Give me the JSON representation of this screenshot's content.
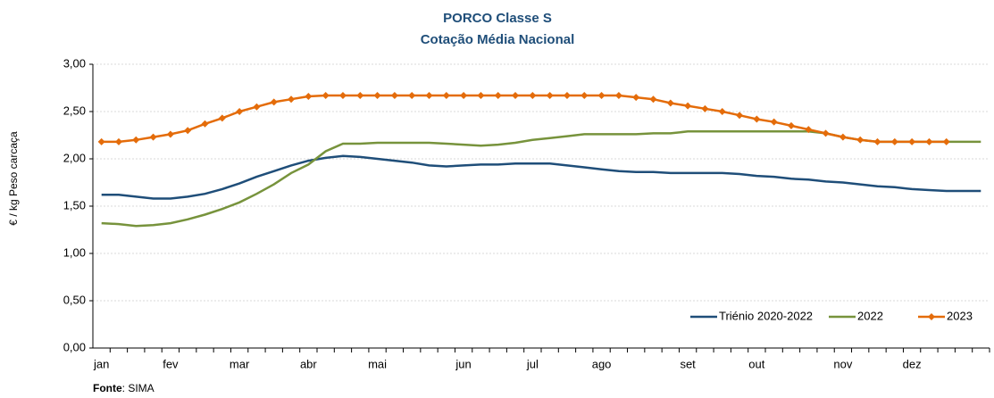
{
  "chart_data": {
    "type": "line",
    "title": "PORCO Classe S",
    "subtitle": "Cotação Média Nacional",
    "y_label": "€ / kg Peso carcaça",
    "source": {
      "label": "Fonte",
      "text": ": SIMA"
    },
    "legend": "bottom-right",
    "grid": true,
    "ylim": [
      0,
      3
    ],
    "yticks": [
      {
        "value": 0,
        "label": "0,00"
      },
      {
        "value": 0.5,
        "label": "0,50"
      },
      {
        "value": 1,
        "label": "1,00"
      },
      {
        "value": 1.5,
        "label": "1,50"
      },
      {
        "value": 2,
        "label": "2,00"
      },
      {
        "value": 2.5,
        "label": "2,50"
      },
      {
        "value": 3,
        "label": "3,00"
      }
    ],
    "categories": [
      "jan",
      null,
      null,
      null,
      "fev",
      null,
      null,
      null,
      "mar",
      null,
      null,
      null,
      "abr",
      null,
      null,
      null,
      "mai",
      null,
      null,
      null,
      null,
      "jun",
      null,
      null,
      null,
      "jul",
      null,
      null,
      null,
      "ago",
      null,
      null,
      null,
      null,
      "set",
      null,
      null,
      null,
      "out",
      null,
      null,
      null,
      null,
      "nov",
      null,
      null,
      null,
      "dez",
      null,
      null,
      null,
      null
    ],
    "series": [
      {
        "name": "Triénio 2020-2022",
        "color": "#1f4e79",
        "marker": false,
        "values": [
          1.62,
          1.62,
          1.6,
          1.58,
          1.58,
          1.6,
          1.63,
          1.68,
          1.74,
          1.81,
          1.87,
          1.93,
          1.98,
          2.01,
          2.03,
          2.02,
          2.0,
          1.98,
          1.96,
          1.93,
          1.92,
          1.93,
          1.94,
          1.94,
          1.95,
          1.95,
          1.95,
          1.93,
          1.91,
          1.89,
          1.87,
          1.86,
          1.86,
          1.85,
          1.85,
          1.85,
          1.85,
          1.84,
          1.82,
          1.81,
          1.79,
          1.78,
          1.76,
          1.75,
          1.73,
          1.71,
          1.7,
          1.68,
          1.67,
          1.66,
          1.66,
          1.66
        ]
      },
      {
        "name": "2022",
        "color": "#77933c",
        "marker": false,
        "values": [
          1.32,
          1.31,
          1.29,
          1.3,
          1.32,
          1.36,
          1.41,
          1.47,
          1.54,
          1.63,
          1.73,
          1.85,
          1.94,
          2.08,
          2.16,
          2.16,
          2.17,
          2.17,
          2.17,
          2.17,
          2.16,
          2.15,
          2.14,
          2.15,
          2.17,
          2.2,
          2.22,
          2.24,
          2.26,
          2.26,
          2.26,
          2.26,
          2.27,
          2.27,
          2.29,
          2.29,
          2.29,
          2.29,
          2.29,
          2.29,
          2.29,
          2.29,
          2.27,
          2.23,
          2.2,
          2.18,
          2.18,
          2.18,
          2.18,
          2.18,
          2.18,
          2.18
        ]
      },
      {
        "name": "2023",
        "color": "#e46c0a",
        "marker": true,
        "values": [
          2.18,
          2.18,
          2.2,
          2.23,
          2.26,
          2.3,
          2.37,
          2.43,
          2.5,
          2.55,
          2.6,
          2.63,
          2.66,
          2.67,
          2.67,
          2.67,
          2.67,
          2.67,
          2.67,
          2.67,
          2.67,
          2.67,
          2.67,
          2.67,
          2.67,
          2.67,
          2.67,
          2.67,
          2.67,
          2.67,
          2.67,
          2.65,
          2.63,
          2.59,
          2.56,
          2.53,
          2.5,
          2.46,
          2.42,
          2.39,
          2.35,
          2.31,
          2.27,
          2.23,
          2.2,
          2.18,
          2.18,
          2.18,
          2.18,
          2.18,
          null,
          null
        ]
      }
    ]
  }
}
